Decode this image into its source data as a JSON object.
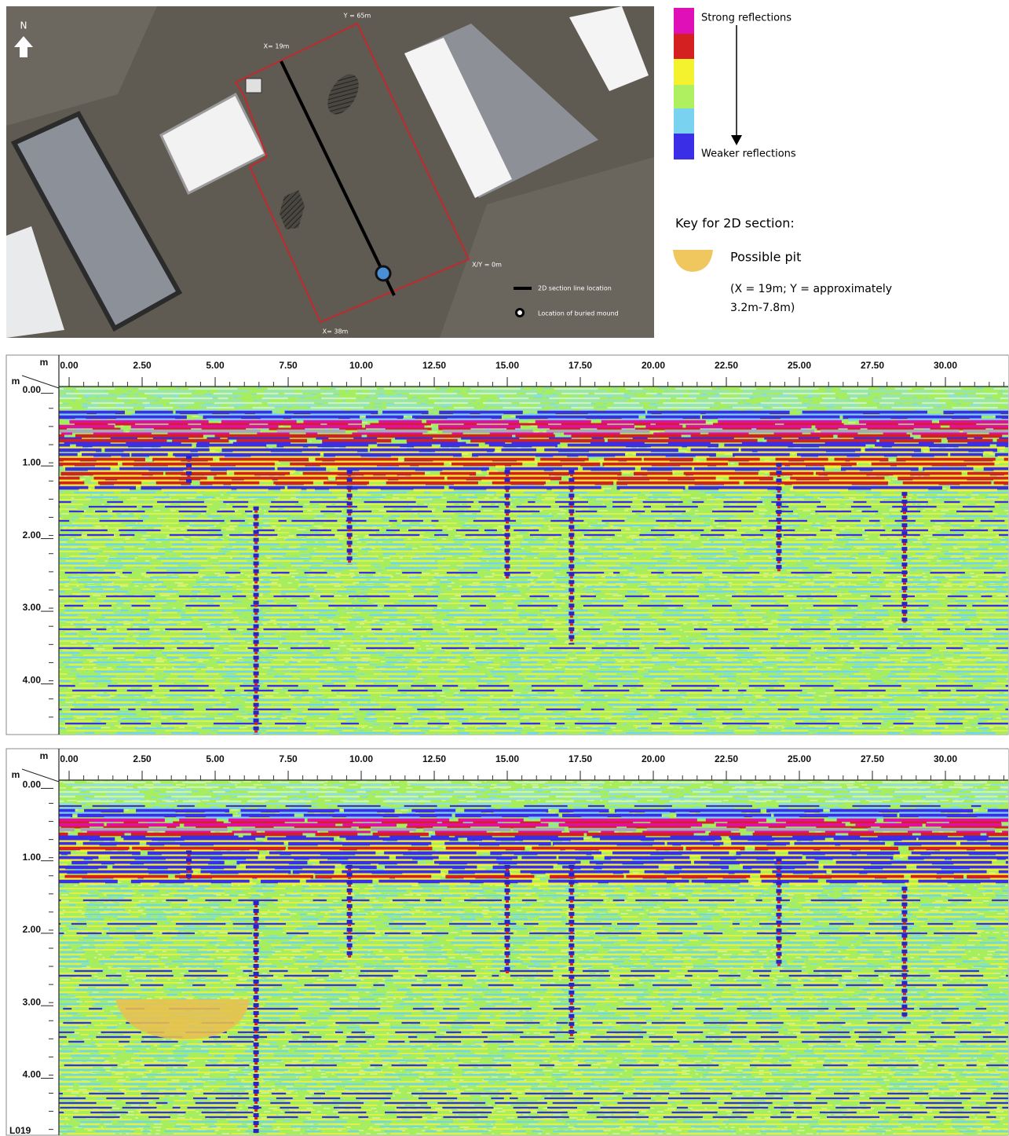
{
  "map": {
    "north": "N",
    "labels": {
      "y_top": "Y = 65m",
      "x_start": "X= 19m",
      "origin": "X/Y = 0m",
      "x_end": "X= 38m"
    },
    "legend": {
      "section_line": "2D section line location",
      "buried_mound": "Location of buried mound"
    }
  },
  "reflection_scale": {
    "strong": "Strong reflections",
    "weak": "Weaker reflections"
  },
  "key": {
    "title": "Key for 2D section:",
    "item": "Possible pit",
    "note": [
      "(X = 19m; Y = approximately",
      "3.2m-7.8m)"
    ]
  },
  "radargrams": [
    {
      "x_unit": "m",
      "y_unit": "m",
      "xlim": [
        -0.35,
        32.15
      ],
      "ylim": [
        -0.05,
        4.74
      ],
      "xticks": [
        {
          "value": 0,
          "label": "0.00"
        },
        {
          "value": 2.5,
          "label": "2.50"
        },
        {
          "value": 5,
          "label": "5.00"
        },
        {
          "value": 7.5,
          "label": "7.50"
        },
        {
          "value": 10,
          "label": "10.00"
        },
        {
          "value": 12.5,
          "label": "12.50"
        },
        {
          "value": 15,
          "label": "15.00"
        },
        {
          "value": 17.5,
          "label": "17.50"
        },
        {
          "value": 20,
          "label": "20.00"
        },
        {
          "value": 22.5,
          "label": "22.50"
        },
        {
          "value": 25,
          "label": "25.00"
        },
        {
          "value": 27.5,
          "label": "27.50"
        },
        {
          "value": 30,
          "label": "30.00"
        }
      ],
      "yticks": [
        {
          "value": 0,
          "label": "0.00"
        },
        {
          "value": 1,
          "label": "1.00"
        },
        {
          "value": 2,
          "label": "2.00"
        },
        {
          "value": 3,
          "label": "3.00"
        },
        {
          "value": 4,
          "label": "4.00"
        }
      ]
    },
    {
      "x_unit": "m",
      "y_unit": "m",
      "xlim": [
        -0.35,
        32.15
      ],
      "ylim": [
        -0.07,
        4.83
      ],
      "xticks": [
        {
          "value": 0,
          "label": "0.00"
        },
        {
          "value": 2.5,
          "label": "2.50"
        },
        {
          "value": 5,
          "label": "5.00"
        },
        {
          "value": 7.5,
          "label": "7.50"
        },
        {
          "value": 10,
          "label": "10.00"
        },
        {
          "value": 12.5,
          "label": "12.50"
        },
        {
          "value": 15,
          "label": "15.00"
        },
        {
          "value": 17.5,
          "label": "17.50"
        },
        {
          "value": 20,
          "label": "20.00"
        },
        {
          "value": 22.5,
          "label": "22.50"
        },
        {
          "value": 25,
          "label": "25.00"
        },
        {
          "value": 27.5,
          "label": "27.50"
        },
        {
          "value": 30,
          "label": "30.00"
        }
      ],
      "yticks": [
        {
          "value": 0,
          "label": "0.00"
        },
        {
          "value": 1,
          "label": "1.00"
        },
        {
          "value": 2,
          "label": "2.00"
        },
        {
          "value": 3,
          "label": "3.00"
        },
        {
          "value": 4,
          "label": "4.00"
        }
      ],
      "line_label": "L019"
    }
  ]
}
